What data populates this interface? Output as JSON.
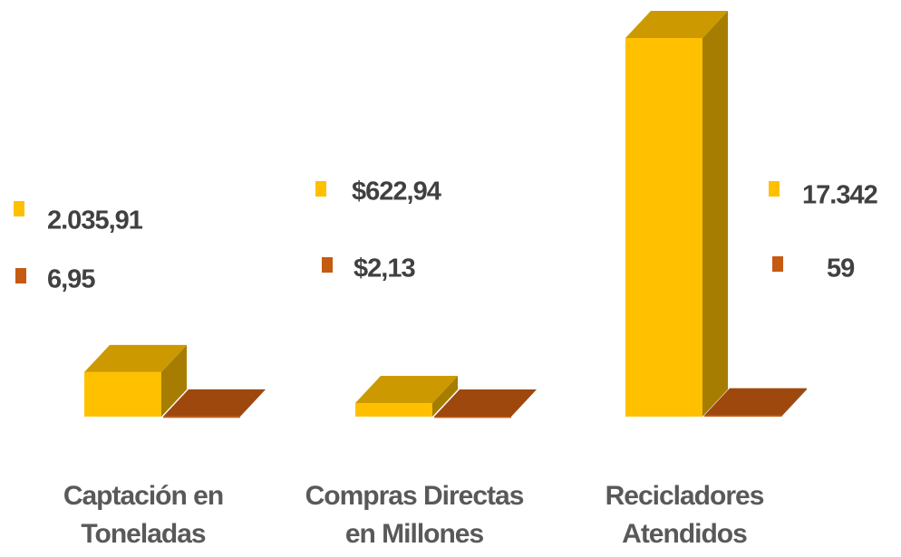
{
  "chart_data": {
    "type": "bar3d",
    "categories": [
      "Captación en Toneladas",
      "Compras Directas en Millones",
      "Recicladores Atendidos"
    ],
    "series": [
      {
        "color": "#ffc000",
        "values": [
          2035.91,
          622.94,
          17342
        ],
        "value_labels": [
          "2.035,91",
          "$622,94",
          "17.342"
        ]
      },
      {
        "color": "#c55a11",
        "values": [
          6.95,
          2.13,
          59
        ],
        "value_labels": [
          "6,95",
          "$2,13",
          "59"
        ]
      }
    ]
  }
}
